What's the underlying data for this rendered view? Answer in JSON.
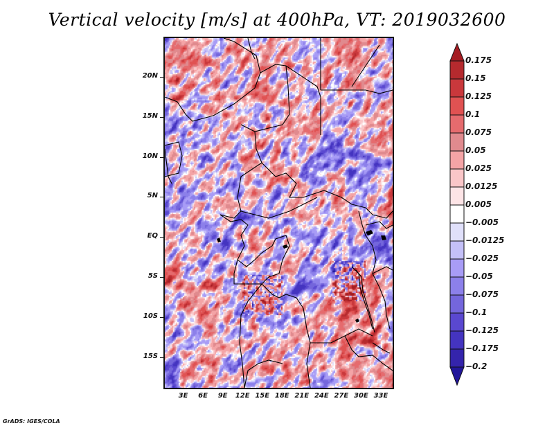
{
  "title": "Vertical velocity [m/s] at 400hPa, VT: 2019032600",
  "credit": "GrADS: IGES/COLA",
  "map": {
    "variable": "Vertical velocity",
    "units": "m/s",
    "level": "400hPa",
    "valid_time": "2019032600",
    "lon_range": [
      0,
      35
    ],
    "lat_range": [
      -19,
      25
    ],
    "y_ticks": [
      {
        "value": 20,
        "label": "20N"
      },
      {
        "value": 15,
        "label": "15N"
      },
      {
        "value": 10,
        "label": "10N"
      },
      {
        "value": 5,
        "label": "5N"
      },
      {
        "value": 0,
        "label": "EQ"
      },
      {
        "value": -5,
        "label": "5S"
      },
      {
        "value": -10,
        "label": "10S"
      },
      {
        "value": -15,
        "label": "15S"
      }
    ],
    "x_ticks": [
      {
        "value": 3,
        "label": "3E"
      },
      {
        "value": 6,
        "label": "6E"
      },
      {
        "value": 9,
        "label": "9E"
      },
      {
        "value": 12,
        "label": "12E"
      },
      {
        "value": 15,
        "label": "15E"
      },
      {
        "value": 18,
        "label": "18E"
      },
      {
        "value": 21,
        "label": "21E"
      },
      {
        "value": 24,
        "label": "24E"
      },
      {
        "value": 27,
        "label": "27E"
      },
      {
        "value": 30,
        "label": "30E"
      },
      {
        "value": 33,
        "label": "33E"
      }
    ]
  },
  "colorbar": {
    "levels": [
      "0.175",
      "0.15",
      "0.125",
      "0.1",
      "0.075",
      "0.05",
      "0.025",
      "0.0125",
      "0.005",
      "-0.005",
      "-0.0125",
      "-0.025",
      "-0.05",
      "-0.075",
      "-0.1",
      "-0.125",
      "-0.175",
      "-0.2"
    ],
    "colors": [
      "#a51c22",
      "#b52a2e",
      "#c9383c",
      "#e05252",
      "#e56b6e",
      "#e08a8e",
      "#f4a4a6",
      "#fac6c8",
      "#fde4e6",
      "#ffffff",
      "#e0e0fa",
      "#c4c0f8",
      "#a89cf6",
      "#8c80ea",
      "#7466dc",
      "#5a48d0",
      "#4434c0",
      "#3424ac",
      "#22169a"
    ],
    "top_arrow_color": "#a51c22",
    "bottom_arrow_color": "#22169a"
  }
}
